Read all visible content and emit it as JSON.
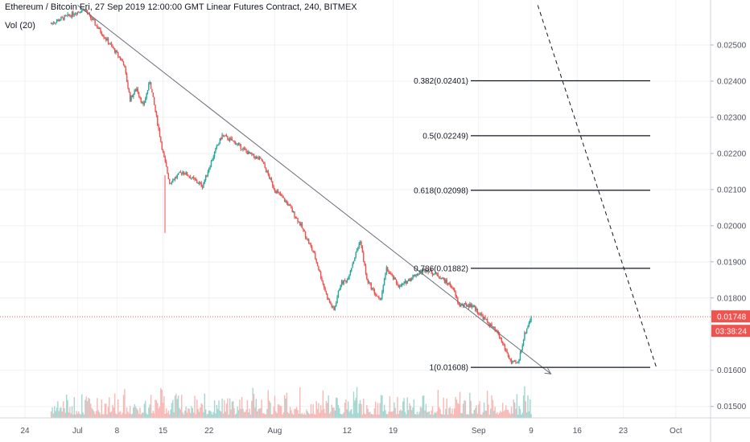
{
  "header": {
    "title": "Ethereum / Bitcoin Fri, 27 Sep 2019 12:00:00 GMT Linear Futures Contract, 240, BITMEX",
    "indicator": "Vol (20)"
  },
  "price_axis": {
    "ticks": [
      "0.02500",
      "0.02400",
      "0.02300",
      "0.02200",
      "0.02100",
      "0.02000",
      "0.01900",
      "0.01800",
      "0.01600",
      "0.01500"
    ]
  },
  "time_axis": {
    "ticks": [
      "24",
      "Jul",
      "8",
      "15",
      "22",
      "Aug",
      "12",
      "19",
      "Sep",
      "9",
      "16",
      "23",
      "Oct"
    ]
  },
  "last_price": {
    "price_label": "0.01748",
    "countdown_label": "03:38:24",
    "color": "#ef5350"
  },
  "colors": {
    "up": "#26a69a",
    "down": "#ef5350",
    "vol_up": "#a5d6d1",
    "vol_down": "#f7b8b6"
  },
  "chart_data": {
    "type": "candlestick",
    "title": "Ethereum / Bitcoin Fri, 27 Sep 2019 12:00:00 GMT Linear Futures Contract, 240, BITMEX",
    "y_range": [
      0.01486,
      0.0258
    ],
    "price_path": [
      {
        "x": "Jun 28",
        "y": 0.0256
      },
      {
        "x": "Jul 3",
        "y": 0.026
      },
      {
        "x": "Jul 9",
        "y": 0.0245
      },
      {
        "x": "Jul 10",
        "y": 0.0235
      },
      {
        "x": "Jul 11",
        "y": 0.0238
      },
      {
        "x": "Jul 12",
        "y": 0.0233
      },
      {
        "x": "Jul 13",
        "y": 0.024
      },
      {
        "x": "Jul 14",
        "y": 0.023
      },
      {
        "x": "Jul 15",
        "y": 0.022
      },
      {
        "x": "Jul 16",
        "y": 0.0212
      },
      {
        "x": "Jul 18",
        "y": 0.0215
      },
      {
        "x": "Jul 21",
        "y": 0.0211
      },
      {
        "x": "Jul 23",
        "y": 0.0221
      },
      {
        "x": "Jul 24",
        "y": 0.0225
      },
      {
        "x": "Jul 26",
        "y": 0.0223
      },
      {
        "x": "Jul 28",
        "y": 0.022
      },
      {
        "x": "Jul 30",
        "y": 0.0218
      },
      {
        "x": "Aug 1",
        "y": 0.021
      },
      {
        "x": "Aug 3",
        "y": 0.0206
      },
      {
        "x": "Aug 5",
        "y": 0.02
      },
      {
        "x": "Aug 7",
        "y": 0.0192
      },
      {
        "x": "Aug 9",
        "y": 0.018
      },
      {
        "x": "Aug 10",
        "y": 0.01765
      },
      {
        "x": "Aug 11",
        "y": 0.0184
      },
      {
        "x": "Aug 12",
        "y": 0.0185
      },
      {
        "x": "Aug 14",
        "y": 0.0196
      },
      {
        "x": "Aug 15",
        "y": 0.0185
      },
      {
        "x": "Aug 17",
        "y": 0.0179
      },
      {
        "x": "Aug 18",
        "y": 0.0188
      },
      {
        "x": "Aug 20",
        "y": 0.0183
      },
      {
        "x": "Aug 22",
        "y": 0.0186
      },
      {
        "x": "Aug 24",
        "y": 0.0188
      },
      {
        "x": "Aug 26",
        "y": 0.0186
      },
      {
        "x": "Aug 28",
        "y": 0.0183
      },
      {
        "x": "Aug 29",
        "y": 0.0178
      },
      {
        "x": "Aug 31",
        "y": 0.0178
      },
      {
        "x": "Sep 2",
        "y": 0.0174
      },
      {
        "x": "Sep 4",
        "y": 0.017
      },
      {
        "x": "Sep 6",
        "y": 0.0162
      },
      {
        "x": "Sep 7",
        "y": 0.0162
      },
      {
        "x": "Sep 8",
        "y": 0.017
      },
      {
        "x": "Sep 9",
        "y": 0.01748
      }
    ],
    "fib_levels": [
      {
        "label": "0.382(0.02401)",
        "value": 0.02401
      },
      {
        "label": "0.5(0.02249)",
        "value": 0.02249
      },
      {
        "label": "0.618(0.02098)",
        "value": 0.02098
      },
      {
        "label": "0.786(0.01882)",
        "value": 0.01882
      },
      {
        "label": "1(0.01608)",
        "value": 0.01608
      }
    ],
    "trendline": {
      "from": {
        "x": "Jul 2",
        "y": 0.0261
      },
      "to": {
        "x": "Sep 12",
        "y": 0.0159
      }
    },
    "projection_line": {
      "from": {
        "x": "Sep 10",
        "y": 0.0261
      },
      "to": {
        "x": "Sep 28",
        "y": 0.0161
      }
    },
    "last_price": 0.01748
  }
}
